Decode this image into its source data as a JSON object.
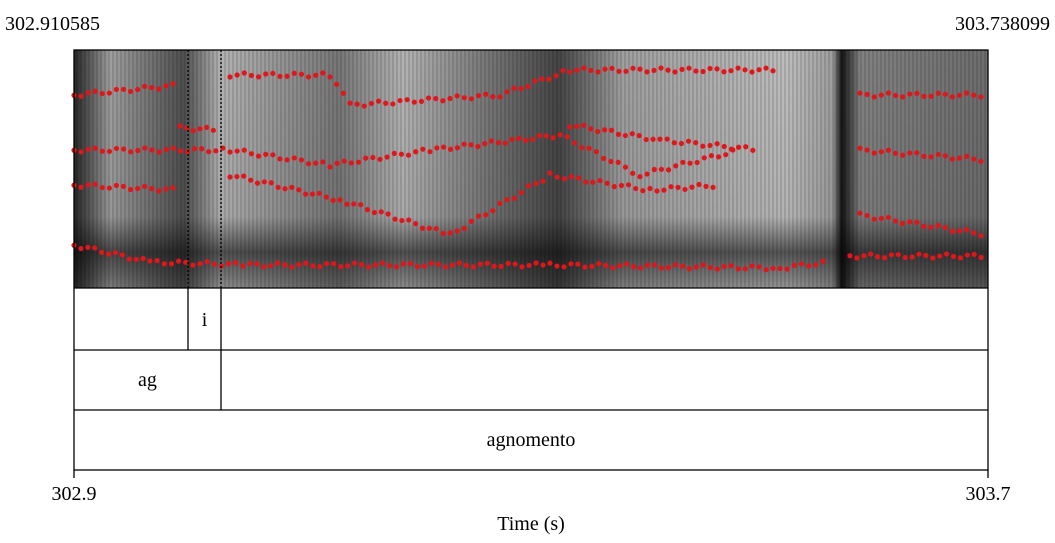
{
  "header": {
    "start_time": "302.910585",
    "end_time": "303.738099"
  },
  "tiers": [
    {
      "labels": [
        "i"
      ]
    },
    {
      "labels": [
        "ag"
      ]
    },
    {
      "labels": [
        "agnomento"
      ]
    }
  ],
  "axis": {
    "ticks": [
      "302.9",
      "303.7"
    ],
    "label": "Time (s)"
  }
}
